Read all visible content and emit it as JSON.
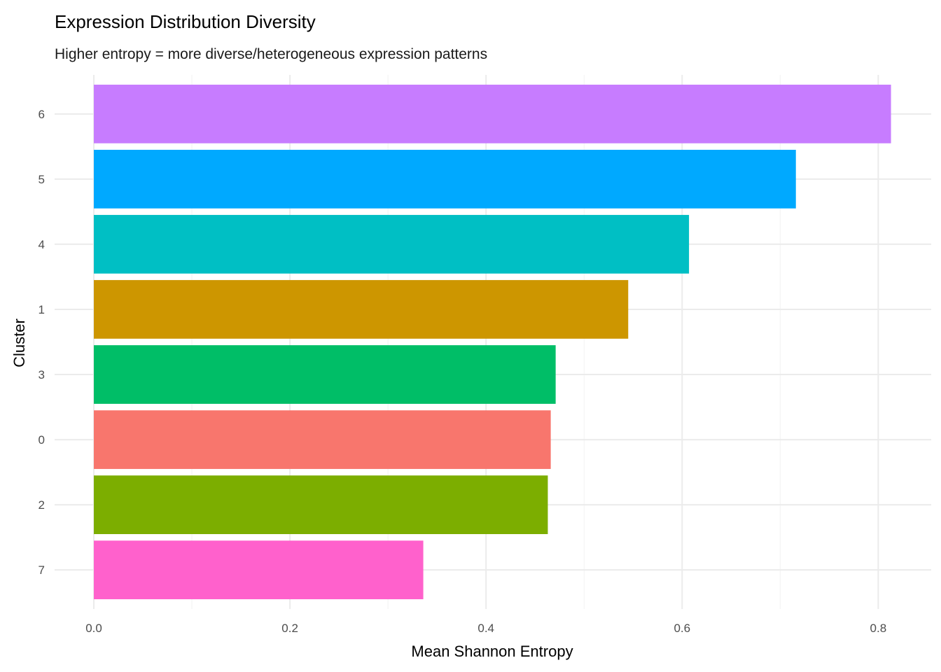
{
  "chart_data": {
    "type": "bar",
    "orientation": "horizontal",
    "title": "Expression Distribution Diversity",
    "subtitle": "Higher entropy = more diverse/heterogeneous expression patterns",
    "xlabel": "Mean Shannon Entropy",
    "ylabel": "Cluster",
    "categories": [
      "7",
      "2",
      "0",
      "3",
      "1",
      "4",
      "5",
      "6"
    ],
    "values": [
      0.336,
      0.463,
      0.466,
      0.471,
      0.545,
      0.607,
      0.716,
      0.813
    ],
    "colors": [
      "#FF61CC",
      "#7CAE00",
      "#F8766D",
      "#00BE67",
      "#CD9600",
      "#00BFC4",
      "#00A9FF",
      "#C77CFF"
    ],
    "xticks": [
      "0.0",
      "0.2",
      "0.4",
      "0.6",
      "0.8"
    ],
    "xlim": [
      -0.04,
      0.854
    ],
    "grid": true,
    "legend": "none"
  }
}
